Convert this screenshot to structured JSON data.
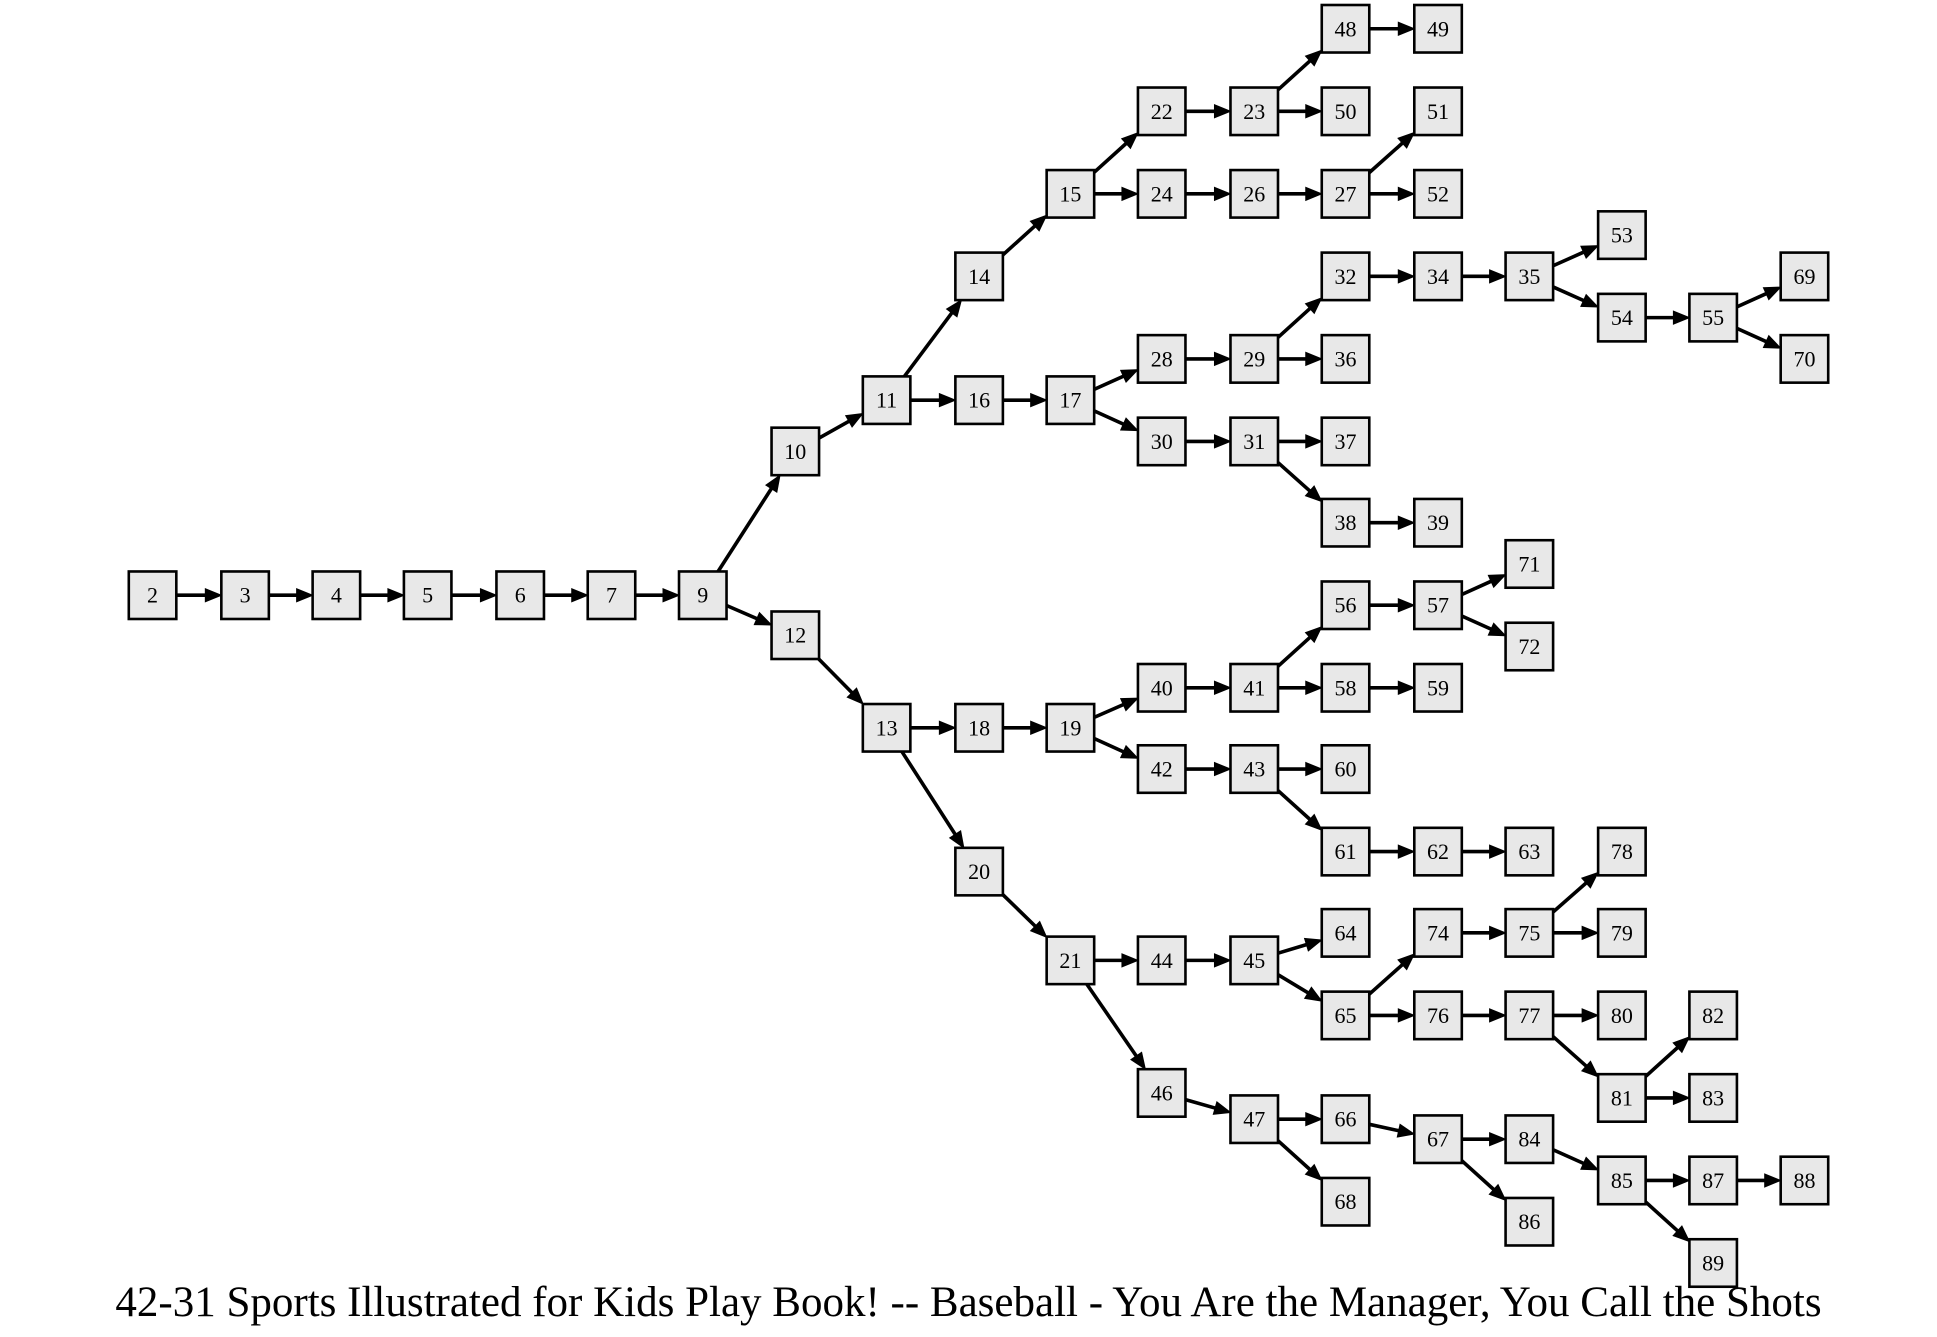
{
  "caption": "42-31 Sports Illustrated for Kids Play Book! -- Baseball - You Are the Manager, You Call the Shots",
  "colors": {
    "node_fill": "#e8e8e8",
    "node_stroke": "#000000",
    "edge": "#000000",
    "background": "#ffffff"
  },
  "nodes": [
    {
      "id": "2",
      "label": "2"
    },
    {
      "id": "3",
      "label": "3"
    },
    {
      "id": "4",
      "label": "4"
    },
    {
      "id": "5",
      "label": "5"
    },
    {
      "id": "6",
      "label": "6"
    },
    {
      "id": "7",
      "label": "7"
    },
    {
      "id": "9",
      "label": "9"
    },
    {
      "id": "10",
      "label": "10"
    },
    {
      "id": "11",
      "label": "11"
    },
    {
      "id": "12",
      "label": "12"
    },
    {
      "id": "13",
      "label": "13"
    },
    {
      "id": "14",
      "label": "14"
    },
    {
      "id": "15",
      "label": "15"
    },
    {
      "id": "16",
      "label": "16"
    },
    {
      "id": "17",
      "label": "17"
    },
    {
      "id": "18",
      "label": "18"
    },
    {
      "id": "19",
      "label": "19"
    },
    {
      "id": "20",
      "label": "20"
    },
    {
      "id": "21",
      "label": "21"
    },
    {
      "id": "22",
      "label": "22"
    },
    {
      "id": "23",
      "label": "23"
    },
    {
      "id": "24",
      "label": "24"
    },
    {
      "id": "26",
      "label": "26"
    },
    {
      "id": "27",
      "label": "27"
    },
    {
      "id": "28",
      "label": "28"
    },
    {
      "id": "29",
      "label": "29"
    },
    {
      "id": "30",
      "label": "30"
    },
    {
      "id": "31",
      "label": "31"
    },
    {
      "id": "32",
      "label": "32"
    },
    {
      "id": "34",
      "label": "34"
    },
    {
      "id": "35",
      "label": "35"
    },
    {
      "id": "36",
      "label": "36"
    },
    {
      "id": "37",
      "label": "37"
    },
    {
      "id": "38",
      "label": "38"
    },
    {
      "id": "39",
      "label": "39"
    },
    {
      "id": "40",
      "label": "40"
    },
    {
      "id": "41",
      "label": "41"
    },
    {
      "id": "42",
      "label": "42"
    },
    {
      "id": "43",
      "label": "43"
    },
    {
      "id": "44",
      "label": "44"
    },
    {
      "id": "45",
      "label": "45"
    },
    {
      "id": "46",
      "label": "46"
    },
    {
      "id": "47",
      "label": "47"
    },
    {
      "id": "48",
      "label": "48"
    },
    {
      "id": "49",
      "label": "49"
    },
    {
      "id": "50",
      "label": "50"
    },
    {
      "id": "51",
      "label": "51"
    },
    {
      "id": "52",
      "label": "52"
    },
    {
      "id": "53",
      "label": "53"
    },
    {
      "id": "54",
      "label": "54"
    },
    {
      "id": "55",
      "label": "55"
    },
    {
      "id": "56",
      "label": "56"
    },
    {
      "id": "57",
      "label": "57"
    },
    {
      "id": "58",
      "label": "58"
    },
    {
      "id": "59",
      "label": "59"
    },
    {
      "id": "60",
      "label": "60"
    },
    {
      "id": "61",
      "label": "61"
    },
    {
      "id": "62",
      "label": "62"
    },
    {
      "id": "63",
      "label": "63"
    },
    {
      "id": "64",
      "label": "64"
    },
    {
      "id": "65",
      "label": "65"
    },
    {
      "id": "66",
      "label": "66"
    },
    {
      "id": "67",
      "label": "67"
    },
    {
      "id": "68",
      "label": "68"
    },
    {
      "id": "69",
      "label": "69"
    },
    {
      "id": "70",
      "label": "70"
    },
    {
      "id": "71",
      "label": "71"
    },
    {
      "id": "72",
      "label": "72"
    },
    {
      "id": "74",
      "label": "74"
    },
    {
      "id": "75",
      "label": "75"
    },
    {
      "id": "76",
      "label": "76"
    },
    {
      "id": "77",
      "label": "77"
    },
    {
      "id": "78",
      "label": "78"
    },
    {
      "id": "79",
      "label": "79"
    },
    {
      "id": "80",
      "label": "80"
    },
    {
      "id": "81",
      "label": "81"
    },
    {
      "id": "82",
      "label": "82"
    },
    {
      "id": "83",
      "label": "83"
    },
    {
      "id": "84",
      "label": "84"
    },
    {
      "id": "85",
      "label": "85"
    },
    {
      "id": "86",
      "label": "86"
    },
    {
      "id": "87",
      "label": "87"
    },
    {
      "id": "88",
      "label": "88"
    },
    {
      "id": "89",
      "label": "89"
    }
  ],
  "edges": [
    [
      "2",
      "3"
    ],
    [
      "3",
      "4"
    ],
    [
      "4",
      "5"
    ],
    [
      "5",
      "6"
    ],
    [
      "6",
      "7"
    ],
    [
      "7",
      "9"
    ],
    [
      "9",
      "10"
    ],
    [
      "9",
      "12"
    ],
    [
      "10",
      "11"
    ],
    [
      "11",
      "14"
    ],
    [
      "11",
      "16"
    ],
    [
      "14",
      "15"
    ],
    [
      "15",
      "22"
    ],
    [
      "15",
      "24"
    ],
    [
      "22",
      "23"
    ],
    [
      "23",
      "48"
    ],
    [
      "23",
      "50"
    ],
    [
      "48",
      "49"
    ],
    [
      "24",
      "26"
    ],
    [
      "26",
      "27"
    ],
    [
      "27",
      "51"
    ],
    [
      "27",
      "52"
    ],
    [
      "16",
      "17"
    ],
    [
      "17",
      "28"
    ],
    [
      "17",
      "30"
    ],
    [
      "28",
      "29"
    ],
    [
      "29",
      "32"
    ],
    [
      "29",
      "36"
    ],
    [
      "32",
      "34"
    ],
    [
      "34",
      "35"
    ],
    [
      "35",
      "53"
    ],
    [
      "35",
      "54"
    ],
    [
      "54",
      "55"
    ],
    [
      "55",
      "69"
    ],
    [
      "55",
      "70"
    ],
    [
      "30",
      "31"
    ],
    [
      "31",
      "37"
    ],
    [
      "31",
      "38"
    ],
    [
      "38",
      "39"
    ],
    [
      "12",
      "13"
    ],
    [
      "13",
      "18"
    ],
    [
      "13",
      "20"
    ],
    [
      "18",
      "19"
    ],
    [
      "19",
      "40"
    ],
    [
      "19",
      "42"
    ],
    [
      "40",
      "41"
    ],
    [
      "41",
      "56"
    ],
    [
      "41",
      "58"
    ],
    [
      "56",
      "57"
    ],
    [
      "57",
      "71"
    ],
    [
      "57",
      "72"
    ],
    [
      "58",
      "59"
    ],
    [
      "42",
      "43"
    ],
    [
      "43",
      "60"
    ],
    [
      "43",
      "61"
    ],
    [
      "61",
      "62"
    ],
    [
      "62",
      "63"
    ],
    [
      "20",
      "21"
    ],
    [
      "21",
      "44"
    ],
    [
      "21",
      "46"
    ],
    [
      "44",
      "45"
    ],
    [
      "45",
      "64"
    ],
    [
      "45",
      "65"
    ],
    [
      "65",
      "74"
    ],
    [
      "65",
      "76"
    ],
    [
      "74",
      "75"
    ],
    [
      "75",
      "78"
    ],
    [
      "75",
      "79"
    ],
    [
      "76",
      "77"
    ],
    [
      "77",
      "80"
    ],
    [
      "77",
      "81"
    ],
    [
      "81",
      "82"
    ],
    [
      "81",
      "83"
    ],
    [
      "46",
      "47"
    ],
    [
      "47",
      "66"
    ],
    [
      "47",
      "68"
    ],
    [
      "66",
      "67"
    ],
    [
      "67",
      "84"
    ],
    [
      "67",
      "86"
    ],
    [
      "84",
      "85"
    ],
    [
      "85",
      "87"
    ],
    [
      "85",
      "89"
    ],
    [
      "87",
      "88"
    ]
  ]
}
